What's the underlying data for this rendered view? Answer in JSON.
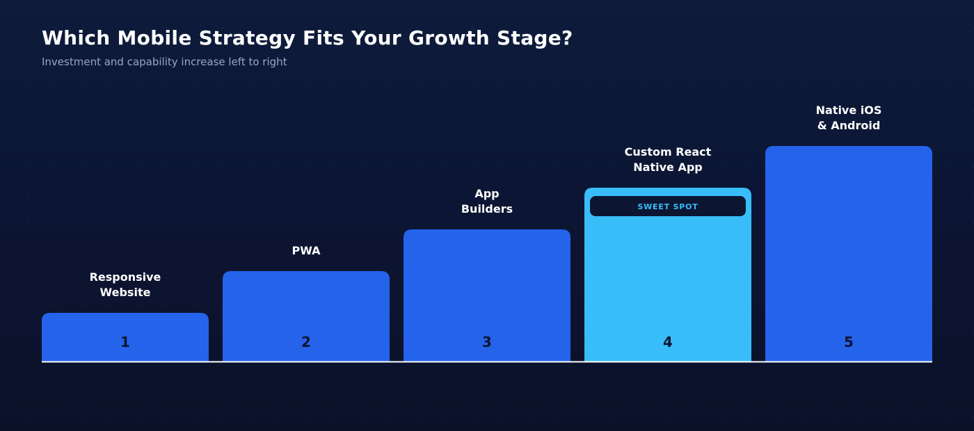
{
  "header": {
    "title": "Which Mobile Strategy Fits Your Growth Stage?",
    "subtitle": "Investment and capability increase left to right"
  },
  "colors": {
    "bar": "#2563eb",
    "highlight_bar": "#38bdf8",
    "badge_bg": "#0c1633",
    "badge_text": "#38bdf8",
    "rank_text": "#0b1634",
    "baseline": "#ffffff"
  },
  "chart_data": {
    "type": "bar",
    "categories": [
      [
        "Responsive",
        "Website"
      ],
      [
        "PWA"
      ],
      [
        "App",
        "Builders"
      ],
      [
        "Custom React",
        "Native App"
      ],
      [
        "Native iOS",
        "& Android"
      ]
    ],
    "values": [
      1,
      2,
      3,
      4,
      5
    ],
    "value_labels": [
      "1",
      "2",
      "3",
      "4",
      "5"
    ],
    "highlight_index": 3,
    "highlight_badge": "SWEET SPOT",
    "grid": false
  }
}
